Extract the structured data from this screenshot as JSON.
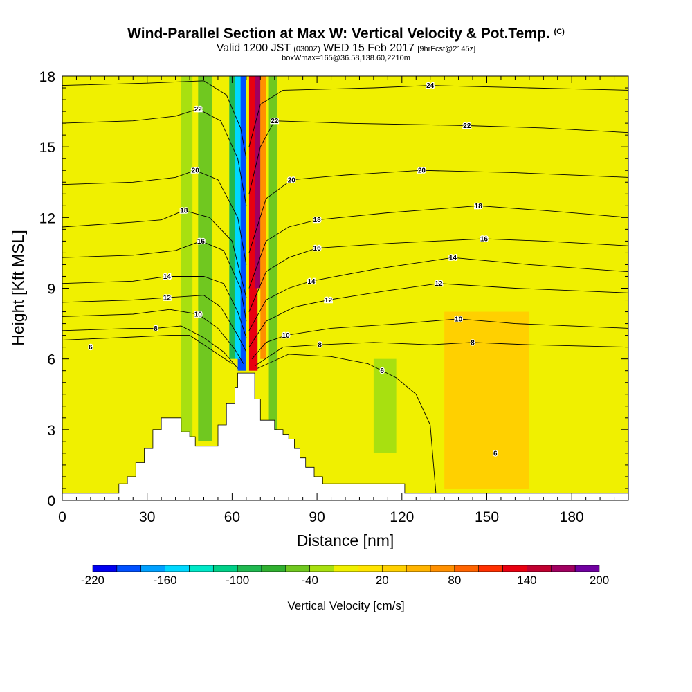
{
  "chart_data": {
    "type": "heatmap",
    "title": "Wind-Parallel Section at Max W: Vertical Velocity & Pot.Temp.",
    "title_mark": "(C)",
    "subtitle_main_a": "Valid 1200 JST",
    "subtitle_zulu": "(0300Z)",
    "subtitle_main_b": "WED 15 Feb 2017",
    "subtitle_fcst": "[9hrFcst@2145z]",
    "subtitle2": "boxWmax=165@36.58,138.60,2210m",
    "xlabel": "Distance [nm]",
    "ylabel": "Height [Kft MSL]",
    "xlim": [
      0,
      200
    ],
    "ylim": [
      0,
      18
    ],
    "x_ticks": [
      0,
      30,
      60,
      90,
      120,
      150,
      180
    ],
    "y_ticks": [
      0,
      3,
      6,
      9,
      12,
      15,
      18
    ],
    "colorbar": {
      "title": "Vertical Velocity [cm/s]",
      "tick_labels": [
        "-220",
        "-160",
        "-100",
        "-40",
        "20",
        "80",
        "140",
        "200"
      ],
      "tick_values": [
        -220,
        -160,
        -100,
        -40,
        20,
        80,
        140,
        200
      ],
      "range": [
        -220,
        200
      ],
      "colors": [
        "#0000f0",
        "#0050ff",
        "#00a0ff",
        "#00d8ff",
        "#00e8c8",
        "#00d088",
        "#20b850",
        "#30b030",
        "#70c820",
        "#a8e010",
        "#f0f000",
        "#ffe400",
        "#ffd000",
        "#ffb400",
        "#ff9000",
        "#ff6400",
        "#ff3000",
        "#e80010",
        "#c00030",
        "#a00060",
        "#7000a0"
      ]
    },
    "velocity_field": {
      "background": "#f0f000",
      "bands": [
        {
          "x": [
            62,
            65
          ],
          "y": [
            5.5,
            18
          ],
          "w": -220,
          "color": "#0050ff"
        },
        {
          "x": [
            61,
            63
          ],
          "y": [
            6,
            18
          ],
          "w": -130,
          "color": "#00d8ff"
        },
        {
          "x": [
            59,
            61
          ],
          "y": [
            6,
            18
          ],
          "w": -80,
          "color": "#20b850"
        },
        {
          "x": [
            66,
            69
          ],
          "y": [
            5.5,
            18
          ],
          "w": 160,
          "color": "#e80010"
        },
        {
          "x": [
            68,
            70
          ],
          "y": [
            9,
            18
          ],
          "w": 200,
          "color": "#a00060"
        },
        {
          "x": [
            70,
            72
          ],
          "y": [
            6,
            18
          ],
          "w": 60,
          "color": "#ff9000"
        },
        {
          "x": [
            73,
            76
          ],
          "y": [
            3,
            18
          ],
          "w": -60,
          "color": "#70c820"
        },
        {
          "x": [
            42,
            46
          ],
          "y": [
            2.5,
            18
          ],
          "w": -40,
          "color": "#a8e010"
        },
        {
          "x": [
            48,
            53
          ],
          "y": [
            2.5,
            18
          ],
          "w": -60,
          "color": "#70c820"
        },
        {
          "x": [
            110,
            118
          ],
          "y": [
            2,
            6
          ],
          "w": -40,
          "color": "#a8e010"
        },
        {
          "x": [
            135,
            165
          ],
          "y": [
            0.5,
            8
          ],
          "w": 40,
          "color": "#ffd000"
        }
      ]
    },
    "terrain_kft": [
      [
        0,
        0.3
      ],
      [
        18,
        0.3
      ],
      [
        20,
        0.7
      ],
      [
        23,
        1.0
      ],
      [
        26,
        1.6
      ],
      [
        29,
        2.2
      ],
      [
        32,
        3.0
      ],
      [
        35,
        3.5
      ],
      [
        40,
        3.5
      ],
      [
        42,
        2.9
      ],
      [
        45,
        2.7
      ],
      [
        47,
        2.3
      ],
      [
        52,
        2.3
      ],
      [
        55,
        3.2
      ],
      [
        58,
        4.1
      ],
      [
        61,
        4.8
      ],
      [
        62,
        5.4
      ],
      [
        67,
        5.4
      ],
      [
        68,
        4.3
      ],
      [
        70,
        3.4
      ],
      [
        75,
        3.0
      ],
      [
        78,
        2.8
      ],
      [
        80,
        2.6
      ],
      [
        82,
        2.2
      ],
      [
        84,
        1.8
      ],
      [
        86,
        1.4
      ],
      [
        89,
        1.0
      ],
      [
        92,
        0.7
      ],
      [
        110,
        0.7
      ],
      [
        120,
        0.7
      ],
      [
        121,
        0.3
      ],
      [
        200,
        0.3
      ]
    ],
    "isentropes": {
      "label_positions": [
        {
          "label": "24",
          "x": 130,
          "y": 17.6
        },
        {
          "label": "22",
          "x": 48,
          "y": 16.6
        },
        {
          "label": "22",
          "x": 75,
          "y": 16.1
        },
        {
          "label": "22",
          "x": 143,
          "y": 15.9
        },
        {
          "label": "20",
          "x": 47,
          "y": 14.0
        },
        {
          "label": "20",
          "x": 81,
          "y": 13.6
        },
        {
          "label": "20",
          "x": 127,
          "y": 14.0
        },
        {
          "label": "18",
          "x": 43,
          "y": 12.3
        },
        {
          "label": "18",
          "x": 90,
          "y": 11.9
        },
        {
          "label": "18",
          "x": 147,
          "y": 12.5
        },
        {
          "label": "16",
          "x": 49,
          "y": 11.0
        },
        {
          "label": "16",
          "x": 90,
          "y": 10.7
        },
        {
          "label": "16",
          "x": 149,
          "y": 11.1
        },
        {
          "label": "14",
          "x": 37,
          "y": 9.5
        },
        {
          "label": "14",
          "x": 88,
          "y": 9.3
        },
        {
          "label": "14",
          "x": 138,
          "y": 10.3
        },
        {
          "label": "12",
          "x": 37,
          "y": 8.6
        },
        {
          "label": "12",
          "x": 94,
          "y": 8.5
        },
        {
          "label": "12",
          "x": 133,
          "y": 9.2
        },
        {
          "label": "10",
          "x": 48,
          "y": 7.9
        },
        {
          "label": "10",
          "x": 79,
          "y": 7.0
        },
        {
          "label": "10",
          "x": 140,
          "y": 7.7
        },
        {
          "label": "8",
          "x": 33,
          "y": 7.3
        },
        {
          "label": "8",
          "x": 91,
          "y": 6.6
        },
        {
          "label": "8",
          "x": 145,
          "y": 6.7
        },
        {
          "label": "6",
          "x": 10,
          "y": 6.5
        },
        {
          "label": "6",
          "x": 113,
          "y": 5.5
        },
        {
          "label": "6",
          "x": 153,
          "y": 2.0
        }
      ],
      "contours": [
        {
          "label": "6",
          "pts": [
            [
              0,
              6.8
            ],
            [
              20,
              6.9
            ],
            [
              38,
              7.0
            ],
            [
              45,
              7.0
            ],
            [
              50,
              6.6
            ],
            [
              55,
              6.2
            ],
            [
              60,
              5.8
            ]
          ]
        },
        {
          "label": "6",
          "pts": [
            [
              69,
              5.6
            ],
            [
              80,
              6.2
            ],
            [
              95,
              6.1
            ],
            [
              108,
              5.8
            ],
            [
              118,
              5.2
            ],
            [
              125,
              4.5
            ],
            [
              130,
              3.2
            ],
            [
              132,
              0.3
            ]
          ]
        },
        {
          "label": "8",
          "pts": [
            [
              0,
              7.2
            ],
            [
              25,
              7.3
            ],
            [
              33,
              7.3
            ],
            [
              42,
              7.4
            ],
            [
              50,
              6.9
            ],
            [
              57,
              6.3
            ],
            [
              62,
              5.6
            ]
          ]
        },
        {
          "label": "8",
          "pts": [
            [
              68,
              5.7
            ],
            [
              78,
              6.5
            ],
            [
              91,
              6.6
            ],
            [
              110,
              6.7
            ],
            [
              130,
              6.6
            ],
            [
              145,
              6.7
            ],
            [
              165,
              6.6
            ],
            [
              200,
              6.5
            ]
          ]
        },
        {
          "label": "10",
          "pts": [
            [
              0,
              7.8
            ],
            [
              25,
              7.9
            ],
            [
              38,
              8.1
            ],
            [
              48,
              7.9
            ],
            [
              55,
              7.3
            ],
            [
              61,
              6.4
            ],
            [
              64,
              5.8
            ]
          ]
        },
        {
          "label": "10",
          "pts": [
            [
              67,
              6.0
            ],
            [
              72,
              6.7
            ],
            [
              79,
              7.0
            ],
            [
              95,
              7.3
            ],
            [
              120,
              7.5
            ],
            [
              140,
              7.7
            ],
            [
              160,
              7.5
            ],
            [
              200,
              7.3
            ]
          ]
        },
        {
          "label": "12",
          "pts": [
            [
              0,
              8.4
            ],
            [
              25,
              8.5
            ],
            [
              37,
              8.6
            ],
            [
              50,
              8.7
            ],
            [
              56,
              8.2
            ],
            [
              62,
              7.0
            ],
            [
              65,
              6.3
            ]
          ]
        },
        {
          "label": "12",
          "pts": [
            [
              66,
              6.5
            ],
            [
              72,
              7.6
            ],
            [
              82,
              8.2
            ],
            [
              94,
              8.5
            ],
            [
              115,
              8.9
            ],
            [
              133,
              9.2
            ],
            [
              160,
              9.0
            ],
            [
              200,
              8.8
            ]
          ]
        },
        {
          "label": "14",
          "pts": [
            [
              0,
              9.2
            ],
            [
              25,
              9.3
            ],
            [
              37,
              9.5
            ],
            [
              50,
              9.5
            ],
            [
              57,
              9.2
            ],
            [
              62,
              8.0
            ],
            [
              65,
              6.9
            ]
          ]
        },
        {
          "label": "14",
          "pts": [
            [
              66,
              7.2
            ],
            [
              72,
              8.5
            ],
            [
              80,
              9.0
            ],
            [
              88,
              9.3
            ],
            [
              110,
              9.8
            ],
            [
              138,
              10.3
            ],
            [
              165,
              10.0
            ],
            [
              200,
              9.7
            ]
          ]
        },
        {
          "label": "16",
          "pts": [
            [
              0,
              10.3
            ],
            [
              25,
              10.4
            ],
            [
              40,
              10.6
            ],
            [
              49,
              11.0
            ],
            [
              57,
              10.6
            ],
            [
              63,
              9.0
            ],
            [
              65,
              7.6
            ]
          ]
        },
        {
          "label": "16",
          "pts": [
            [
              66,
              8.0
            ],
            [
              72,
              9.7
            ],
            [
              80,
              10.3
            ],
            [
              90,
              10.7
            ],
            [
              115,
              10.9
            ],
            [
              149,
              11.1
            ],
            [
              170,
              11.0
            ],
            [
              200,
              10.8
            ]
          ]
        },
        {
          "label": "18",
          "pts": [
            [
              0,
              11.6
            ],
            [
              25,
              11.8
            ],
            [
              35,
              11.9
            ],
            [
              43,
              12.3
            ],
            [
              52,
              12.0
            ],
            [
              60,
              11.0
            ],
            [
              65,
              8.6
            ]
          ]
        },
        {
          "label": "18",
          "pts": [
            [
              66,
              9.0
            ],
            [
              72,
              11.0
            ],
            [
              80,
              11.6
            ],
            [
              90,
              11.9
            ],
            [
              115,
              12.2
            ],
            [
              147,
              12.5
            ],
            [
              170,
              12.3
            ],
            [
              200,
              12.0
            ]
          ]
        },
        {
          "label": "20",
          "pts": [
            [
              0,
              13.4
            ],
            [
              25,
              13.5
            ],
            [
              40,
              13.7
            ],
            [
              47,
              14.0
            ],
            [
              55,
              13.6
            ],
            [
              62,
              12.0
            ],
            [
              65,
              10.0
            ]
          ]
        },
        {
          "label": "20",
          "pts": [
            [
              66,
              10.5
            ],
            [
              72,
              12.8
            ],
            [
              81,
              13.6
            ],
            [
              100,
              13.8
            ],
            [
              127,
              14.0
            ],
            [
              160,
              13.9
            ],
            [
              200,
              13.7
            ]
          ]
        },
        {
          "label": "22",
          "pts": [
            [
              0,
              16.0
            ],
            [
              25,
              16.1
            ],
            [
              40,
              16.3
            ],
            [
              48,
              16.6
            ],
            [
              56,
              16.1
            ],
            [
              62,
              14.5
            ],
            [
              65,
              12.5
            ]
          ]
        },
        {
          "label": "22",
          "pts": [
            [
              66,
              13.0
            ],
            [
              70,
              15.0
            ],
            [
              75,
              16.1
            ],
            [
              100,
              16.0
            ],
            [
              143,
              15.9
            ],
            [
              170,
              15.8
            ],
            [
              200,
              15.6
            ]
          ]
        },
        {
          "label": "24",
          "pts": [
            [
              0,
              17.6
            ],
            [
              30,
              17.7
            ],
            [
              50,
              17.8
            ],
            [
              58,
              17.2
            ],
            [
              63,
              15.8
            ],
            [
              65,
              14.5
            ]
          ]
        },
        {
          "label": "24",
          "pts": [
            [
              66,
              15.0
            ],
            [
              70,
              16.8
            ],
            [
              78,
              17.4
            ],
            [
              110,
              17.5
            ],
            [
              130,
              17.6
            ],
            [
              165,
              17.5
            ],
            [
              200,
              17.4
            ]
          ]
        }
      ]
    }
  }
}
